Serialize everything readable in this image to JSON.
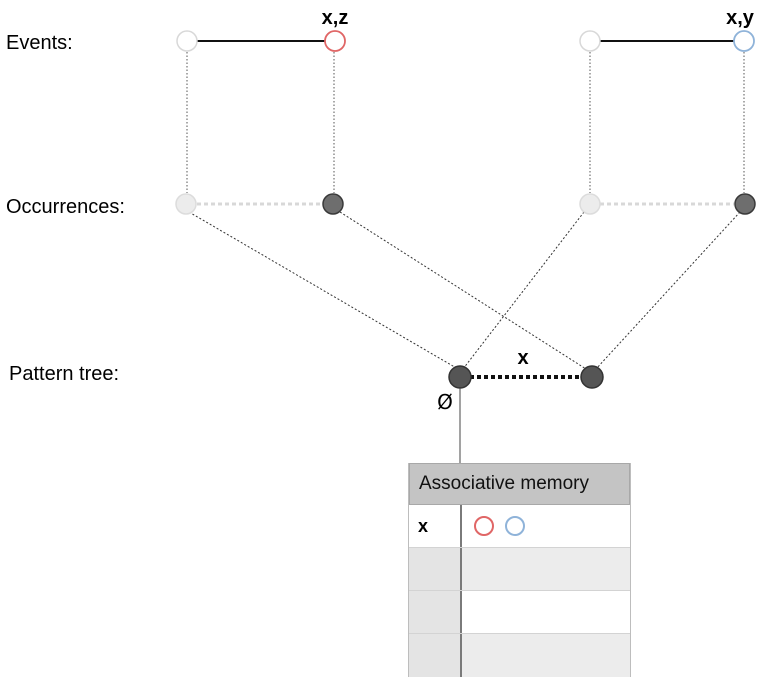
{
  "rows": {
    "events": "Events:",
    "occurrences": "Occurrences:",
    "pattern_tree": "Pattern tree:"
  },
  "events": [
    {
      "label": "x,z",
      "color": "#e06666"
    },
    {
      "label": "x,y",
      "color": "#8fb3d9"
    }
  ],
  "pattern_tree": {
    "root_symbol": "Ø",
    "edge_label": "x"
  },
  "memory": {
    "title": "Associative memory",
    "rows": [
      {
        "key": "x",
        "values": [
          "#e06666",
          "#8fb3d9"
        ]
      },
      {
        "key": "",
        "values": []
      },
      {
        "key": "",
        "values": []
      },
      {
        "key": "",
        "values": []
      }
    ]
  },
  "colors": {
    "faded_node": "#e6e6e6",
    "faded_outline": "#d0d0d0",
    "dark_node": "#6e6e6e",
    "dark_outline": "#3a3a3a"
  }
}
